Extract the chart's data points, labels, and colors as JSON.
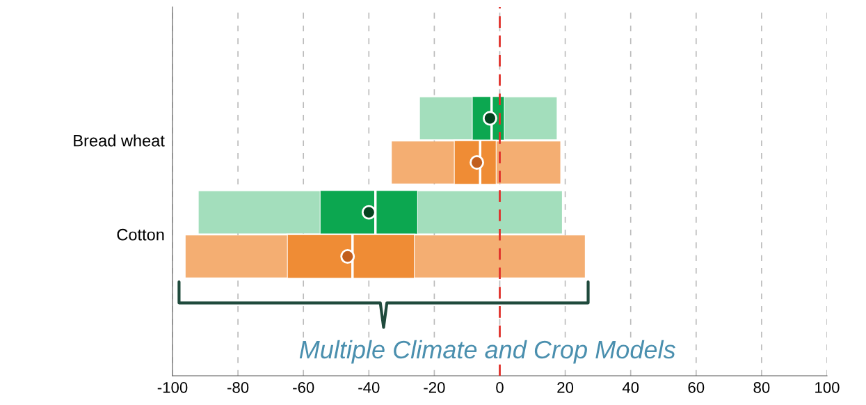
{
  "chart_data": {
    "type": "box",
    "orientation": "horizontal",
    "categories": [
      "Bread wheat",
      "Cotton"
    ],
    "series": [
      {
        "color": "#0ca750",
        "boxes": [
          {
            "low": -24.4,
            "q1": -8.5,
            "median": -2.5,
            "q3": 1.5,
            "high": 17.4,
            "mean": -3
          },
          {
            "low": -92,
            "q1": -55,
            "median": -38,
            "q3": -25,
            "high": 19,
            "mean": -40
          }
        ]
      },
      {
        "color": "#ef8c35",
        "boxes": [
          {
            "low": -33,
            "q1": -14,
            "median": -6,
            "q3": -1,
            "high": 18.5,
            "mean": -7
          },
          {
            "low": -96,
            "q1": -65,
            "median": -45,
            "q3": -26,
            "high": 26,
            "mean": -46.5
          }
        ]
      }
    ],
    "xlim": [
      -100,
      100
    ],
    "xticks": [
      -100,
      -80,
      -60,
      -40,
      -20,
      0,
      20,
      40,
      60,
      80,
      100
    ],
    "grid": "x",
    "ref_lines": [
      {
        "axis": "x",
        "value": 0,
        "color": "#e0302a",
        "line_style": "dashed"
      }
    ],
    "annotations": [
      "Multiple Climate and Crop Models"
    ]
  }
}
